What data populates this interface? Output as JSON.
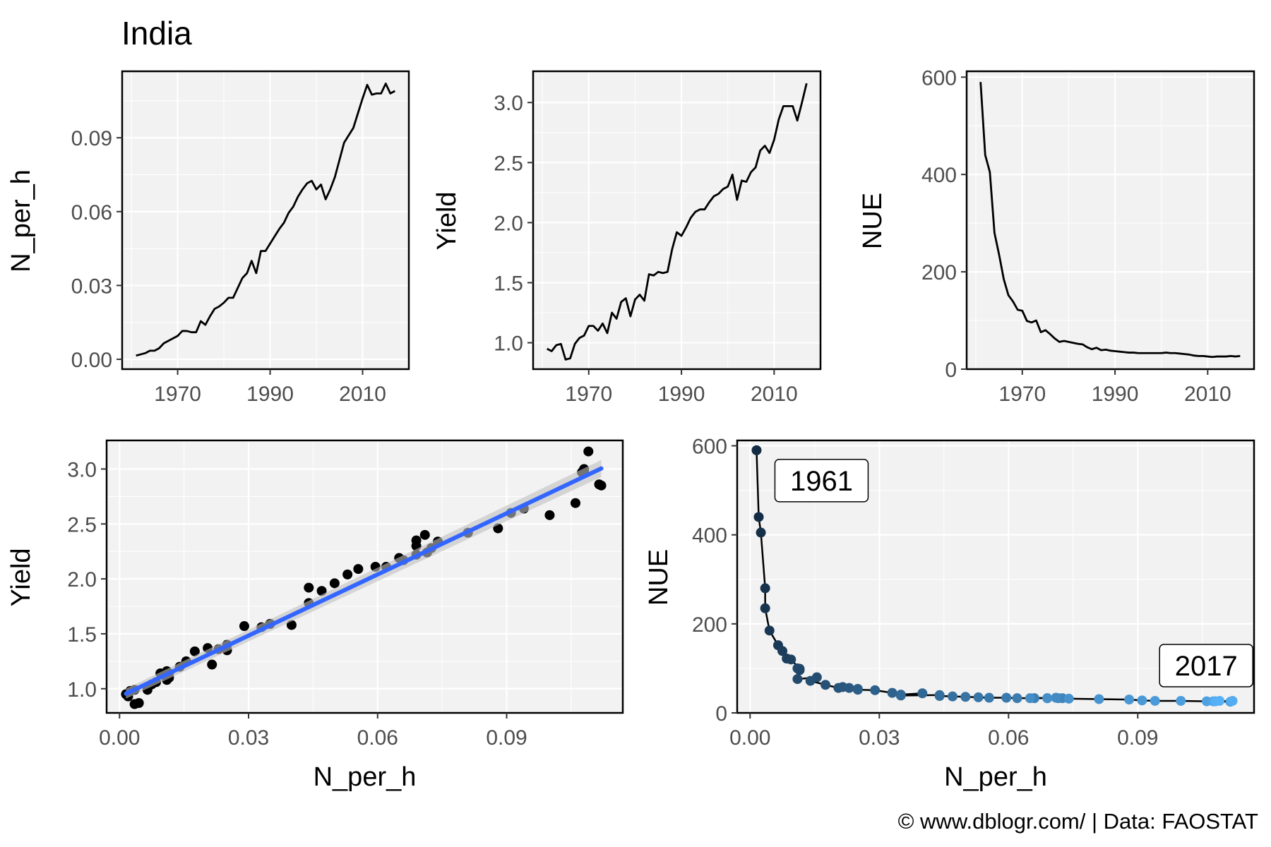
{
  "title": "India",
  "caption": "© www.dblogr.com/  |  Data: FAOSTAT",
  "colors": {
    "panel_bg": "#f2f2f2",
    "line": "#000000",
    "fit": "#3366ff",
    "ribbon": "#bfbfbf",
    "gradient_low": "#132b43",
    "gradient_high": "#56b1f7"
  },
  "chart_data": [
    {
      "id": "n_per_h_time",
      "type": "line",
      "xlabel": "",
      "ylabel": "N_per_h",
      "xlim": [
        1958,
        2020
      ],
      "ylim": [
        -0.004,
        0.117
      ],
      "xticks": [
        1970,
        1990,
        2010
      ],
      "xtick_labels": [
        "1970",
        "1990",
        "2010"
      ],
      "yticks": [
        0,
        0.03,
        0.06,
        0.09
      ],
      "ytick_labels": [
        "0.00",
        "0.03",
        "0.06",
        "0.09"
      ],
      "grid": true,
      "x": [
        1961,
        1962,
        1963,
        1964,
        1965,
        1966,
        1967,
        1968,
        1969,
        1970,
        1971,
        1972,
        1973,
        1974,
        1975,
        1976,
        1977,
        1978,
        1979,
        1980,
        1981,
        1982,
        1983,
        1984,
        1985,
        1986,
        1987,
        1988,
        1989,
        1990,
        1991,
        1992,
        1993,
        1994,
        1995,
        1996,
        1997,
        1998,
        1999,
        2000,
        2001,
        2002,
        2003,
        2004,
        2005,
        2006,
        2007,
        2008,
        2009,
        2010,
        2011,
        2012,
        2013,
        2014,
        2015,
        2016,
        2017
      ],
      "y": [
        0.0015,
        0.002,
        0.0025,
        0.0035,
        0.0035,
        0.0045,
        0.0065,
        0.0075,
        0.0085,
        0.0095,
        0.0115,
        0.0115,
        0.011,
        0.011,
        0.0155,
        0.014,
        0.0175,
        0.0205,
        0.0215,
        0.023,
        0.025,
        0.025,
        0.029,
        0.033,
        0.035,
        0.04,
        0.035,
        0.044,
        0.044,
        0.047,
        0.05,
        0.053,
        0.0555,
        0.0595,
        0.062,
        0.066,
        0.069,
        0.0715,
        0.0725,
        0.069,
        0.071,
        0.065,
        0.069,
        0.074,
        0.081,
        0.088,
        0.091,
        0.094,
        0.1,
        0.106,
        0.1115,
        0.1075,
        0.108,
        0.108,
        0.112,
        0.108,
        0.109
      ]
    },
    {
      "id": "yield_time",
      "type": "line",
      "xlabel": "",
      "ylabel": "Yield",
      "xlim": [
        1958,
        2020
      ],
      "ylim": [
        0.78,
        3.26
      ],
      "xticks": [
        1970,
        1990,
        2010
      ],
      "xtick_labels": [
        "1970",
        "1990",
        "2010"
      ],
      "yticks": [
        1.0,
        1.5,
        2.0,
        2.5,
        3.0
      ],
      "ytick_labels": [
        "1.0",
        "1.5",
        "2.0",
        "2.5",
        "3.0"
      ],
      "grid": true,
      "x": [
        1961,
        1962,
        1963,
        1964,
        1965,
        1966,
        1967,
        1968,
        1969,
        1970,
        1971,
        1972,
        1973,
        1974,
        1975,
        1976,
        1977,
        1978,
        1979,
        1980,
        1981,
        1982,
        1983,
        1984,
        1985,
        1986,
        1987,
        1988,
        1989,
        1990,
        1991,
        1992,
        1993,
        1994,
        1995,
        1996,
        1997,
        1998,
        1999,
        2000,
        2001,
        2002,
        2003,
        2004,
        2005,
        2006,
        2007,
        2008,
        2009,
        2010,
        2011,
        2012,
        2013,
        2014,
        2015,
        2016,
        2017
      ],
      "y": [
        0.95,
        0.93,
        0.98,
        0.99,
        0.86,
        0.87,
        0.99,
        1.04,
        1.06,
        1.14,
        1.14,
        1.1,
        1.16,
        1.08,
        1.25,
        1.2,
        1.34,
        1.37,
        1.22,
        1.36,
        1.4,
        1.35,
        1.57,
        1.56,
        1.59,
        1.58,
        1.59,
        1.78,
        1.92,
        1.89,
        1.96,
        2.04,
        2.09,
        2.11,
        2.11,
        2.17,
        2.22,
        2.24,
        2.28,
        2.3,
        2.4,
        2.19,
        2.35,
        2.34,
        2.42,
        2.46,
        2.6,
        2.64,
        2.58,
        2.69,
        2.86,
        2.97,
        2.97,
        2.97,
        2.85,
        3.0,
        3.16
      ]
    },
    {
      "id": "nue_time",
      "type": "line",
      "xlabel": "",
      "ylabel": "NUE",
      "xlim": [
        1958,
        2020
      ],
      "ylim": [
        0,
        612
      ],
      "xticks": [
        1970,
        1990,
        2010
      ],
      "xtick_labels": [
        "1970",
        "1990",
        "2010"
      ],
      "yticks": [
        0,
        200,
        400,
        600
      ],
      "ytick_labels": [
        "0",
        "200",
        "400",
        "600"
      ],
      "grid": true,
      "x": [
        1961,
        1962,
        1963,
        1964,
        1965,
        1966,
        1967,
        1968,
        1969,
        1970,
        1971,
        1972,
        1973,
        1974,
        1975,
        1976,
        1977,
        1978,
        1979,
        1980,
        1981,
        1982,
        1983,
        1984,
        1985,
        1986,
        1987,
        1988,
        1989,
        1990,
        1991,
        1992,
        1993,
        1994,
        1995,
        1996,
        1997,
        1998,
        1999,
        2000,
        2001,
        2002,
        2003,
        2004,
        2005,
        2006,
        2007,
        2008,
        2009,
        2010,
        2011,
        2012,
        2013,
        2014,
        2015,
        2016,
        2017
      ],
      "y": [
        590,
        440,
        405,
        280,
        235,
        185,
        152,
        139,
        122,
        120,
        99,
        96,
        100,
        76,
        80,
        72,
        63,
        56,
        58,
        56,
        54,
        52,
        51,
        45,
        41,
        44,
        39,
        40,
        38,
        37,
        36,
        35,
        34,
        34,
        33,
        33,
        33,
        33,
        33,
        33,
        34,
        33,
        33,
        32,
        31,
        30,
        28,
        27,
        27,
        26,
        25,
        26,
        26,
        26,
        27,
        26,
        27
      ]
    },
    {
      "id": "yield_vs_n",
      "type": "scatter",
      "xlabel": "N_per_h",
      "ylabel": "Yield",
      "xlim": [
        -0.003,
        0.117
      ],
      "ylim": [
        0.78,
        3.26
      ],
      "xticks": [
        0,
        0.03,
        0.06,
        0.09
      ],
      "xtick_labels": [
        "0.00",
        "0.03",
        "0.06",
        "0.09"
      ],
      "yticks": [
        1.0,
        1.5,
        2.0,
        2.5,
        3.0
      ],
      "ytick_labels": [
        "1.0",
        "1.5",
        "2.0",
        "2.5",
        "3.0"
      ],
      "grid": true,
      "x": [
        0.0015,
        0.002,
        0.0025,
        0.0035,
        0.0035,
        0.0045,
        0.0065,
        0.0075,
        0.0085,
        0.0095,
        0.0115,
        0.0115,
        0.011,
        0.011,
        0.0155,
        0.014,
        0.0175,
        0.0205,
        0.0215,
        0.023,
        0.025,
        0.025,
        0.029,
        0.033,
        0.035,
        0.04,
        0.035,
        0.044,
        0.044,
        0.047,
        0.05,
        0.053,
        0.0555,
        0.0595,
        0.062,
        0.066,
        0.069,
        0.0715,
        0.0725,
        0.069,
        0.071,
        0.065,
        0.069,
        0.074,
        0.081,
        0.088,
        0.091,
        0.094,
        0.1,
        0.106,
        0.1115,
        0.1075,
        0.108,
        0.108,
        0.112,
        0.108,
        0.109
      ],
      "y": [
        0.95,
        0.93,
        0.98,
        0.99,
        0.86,
        0.87,
        0.99,
        1.04,
        1.06,
        1.14,
        1.14,
        1.1,
        1.16,
        1.08,
        1.25,
        1.2,
        1.34,
        1.37,
        1.22,
        1.36,
        1.4,
        1.35,
        1.57,
        1.56,
        1.59,
        1.58,
        1.59,
        1.78,
        1.92,
        1.89,
        1.96,
        2.04,
        2.09,
        2.11,
        2.11,
        2.17,
        2.22,
        2.24,
        2.28,
        2.3,
        2.4,
        2.19,
        2.35,
        2.34,
        2.42,
        2.46,
        2.6,
        2.64,
        2.58,
        2.69,
        2.86,
        2.97,
        2.97,
        2.97,
        2.85,
        3.0,
        3.16
      ],
      "fit": {
        "method": "linear",
        "x": [
          0.0015,
          0.112
        ],
        "y": [
          0.955,
          3.005
        ]
      }
    },
    {
      "id": "nue_vs_n",
      "type": "line",
      "xlabel": "N_per_h",
      "ylabel": "NUE",
      "xlim": [
        -0.003,
        0.117
      ],
      "ylim": [
        0,
        612
      ],
      "xticks": [
        0,
        0.03,
        0.06,
        0.09
      ],
      "xtick_labels": [
        "0.00",
        "0.03",
        "0.06",
        "0.09"
      ],
      "yticks": [
        0,
        200,
        400,
        600
      ],
      "ytick_labels": [
        "0",
        "200",
        "400",
        "600"
      ],
      "grid": true,
      "x": [
        0.0015,
        0.002,
        0.0025,
        0.0035,
        0.0035,
        0.0045,
        0.0065,
        0.0075,
        0.0085,
        0.0095,
        0.0115,
        0.0115,
        0.011,
        0.011,
        0.0155,
        0.014,
        0.0175,
        0.0205,
        0.0215,
        0.023,
        0.025,
        0.025,
        0.029,
        0.033,
        0.035,
        0.04,
        0.035,
        0.044,
        0.044,
        0.047,
        0.05,
        0.053,
        0.0555,
        0.0595,
        0.062,
        0.066,
        0.069,
        0.0715,
        0.0725,
        0.069,
        0.071,
        0.065,
        0.069,
        0.074,
        0.081,
        0.088,
        0.091,
        0.094,
        0.1,
        0.106,
        0.1115,
        0.1075,
        0.108,
        0.108,
        0.112,
        0.108,
        0.109
      ],
      "y": [
        590,
        440,
        405,
        280,
        235,
        185,
        152,
        139,
        122,
        120,
        99,
        96,
        100,
        76,
        80,
        72,
        63,
        56,
        58,
        56,
        54,
        52,
        51,
        45,
        41,
        44,
        39,
        40,
        38,
        37,
        36,
        35,
        34,
        34,
        33,
        33,
        33,
        33,
        33,
        33,
        34,
        33,
        33,
        32,
        31,
        30,
        28,
        27,
        27,
        26,
        25,
        26,
        26,
        26,
        27,
        26,
        27
      ],
      "color_by_order": true,
      "annotations": [
        {
          "text": "1961",
          "x": 0.0015,
          "y": 590
        },
        {
          "text": "2017",
          "x": 0.109,
          "y": 27
        }
      ]
    }
  ]
}
